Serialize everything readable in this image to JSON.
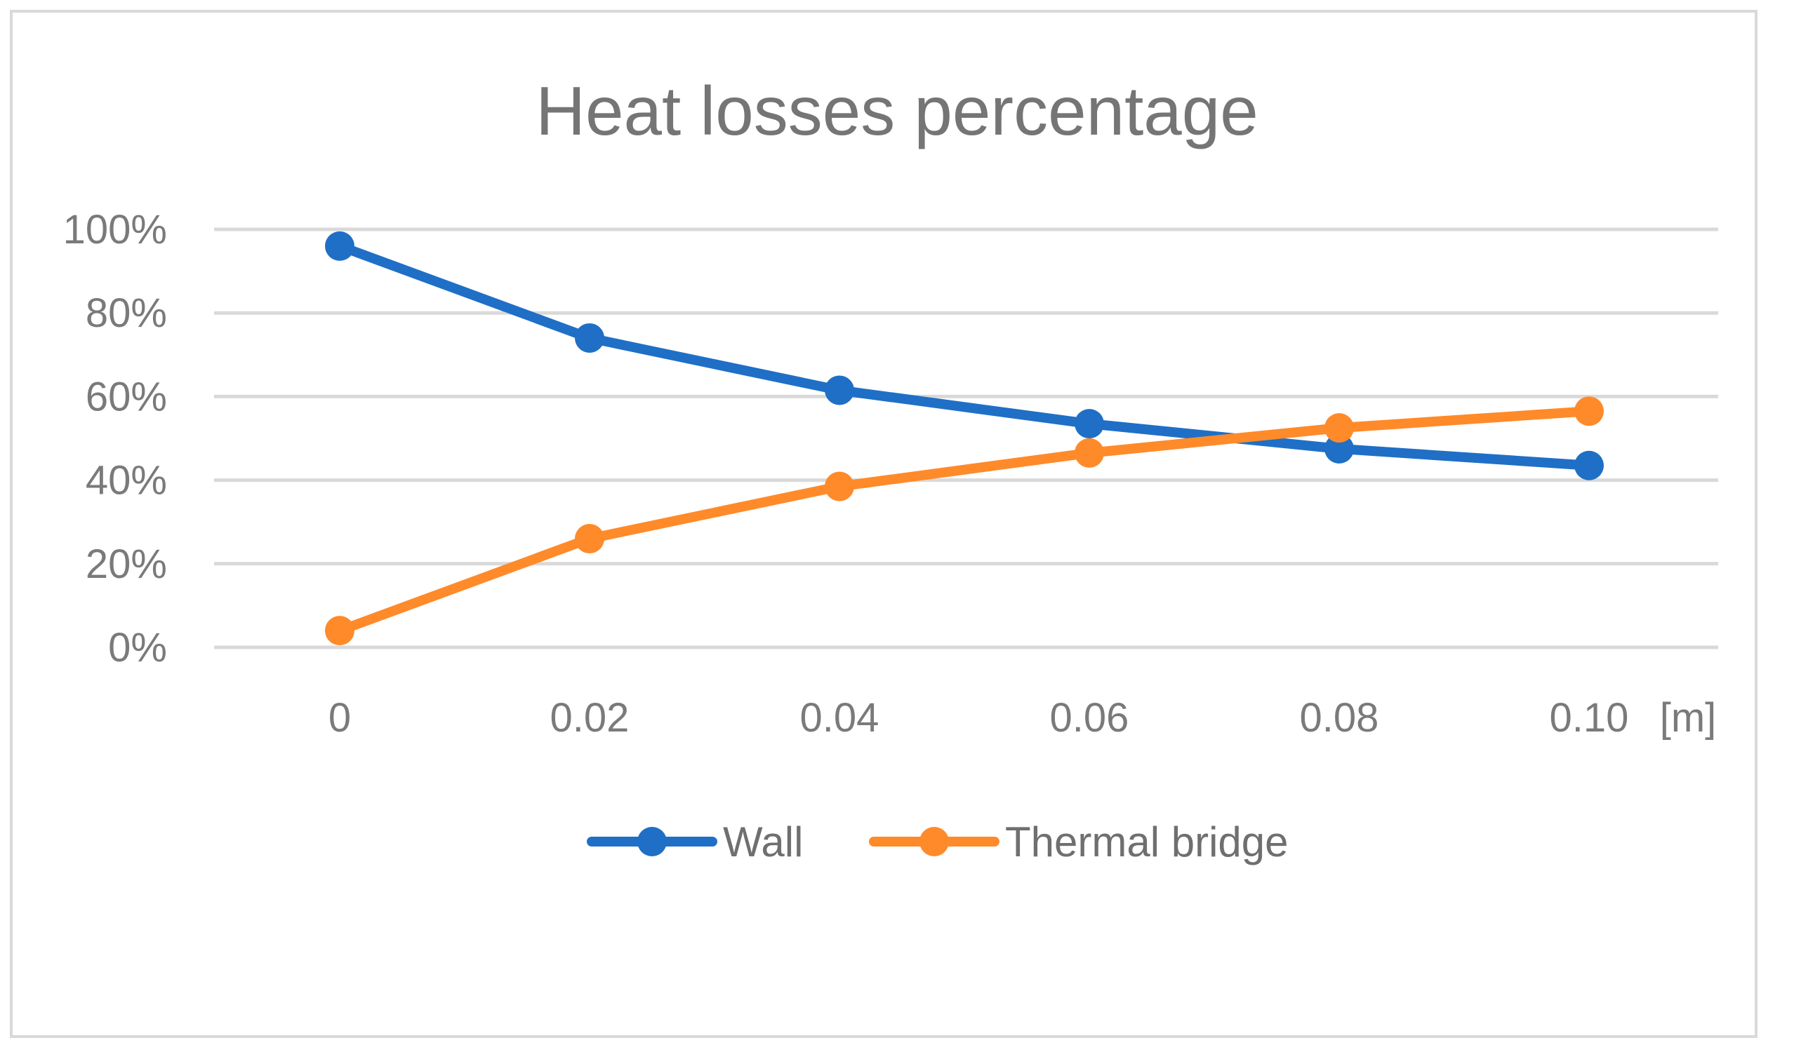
{
  "chart_data": {
    "type": "line",
    "title": "Heat losses percentage",
    "categories": [
      "0",
      "0.02",
      "0.04",
      "0.06",
      "0.08",
      "0.10"
    ],
    "x_unit_label": "[m]",
    "xlabel": "",
    "ylabel": "",
    "ylim": [
      0,
      100
    ],
    "y_ticks": [
      0,
      20,
      40,
      60,
      80,
      100
    ],
    "y_tick_labels": [
      "0%",
      "20%",
      "40%",
      "60%",
      "80%",
      "100%"
    ],
    "grid": "horizontal",
    "legend_position": "bottom",
    "series": [
      {
        "name": "Wall",
        "color": "#1f6fc6",
        "values": [
          96,
          74,
          61.5,
          53.5,
          47.5,
          43.5
        ]
      },
      {
        "name": "Thermal bridge",
        "color": "#ff8a2a",
        "values": [
          4,
          26,
          38.5,
          46.5,
          52.5,
          56.5
        ]
      }
    ]
  }
}
